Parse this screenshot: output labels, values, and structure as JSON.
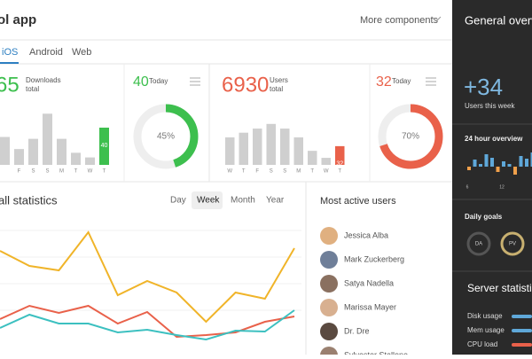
{
  "header": {
    "title": "ol app",
    "menu": "More components"
  },
  "tabs": [
    "iOS",
    "Android",
    "Web"
  ],
  "cards": [
    {
      "total": "65",
      "label_lines": [
        "Downloads",
        "total"
      ],
      "color": "#3dbf4e",
      "days": [
        null,
        "F",
        "S",
        "S",
        "M",
        "T",
        "W",
        "T"
      ],
      "values": [
        30,
        17,
        28,
        55,
        28,
        13,
        8,
        40
      ],
      "today": 40,
      "today_label": "Today",
      "percent": {
        "value": 45,
        "label": "45%"
      }
    },
    {
      "total": "6930",
      "label_lines": [
        "Users",
        "total"
      ],
      "color": "#e9614a",
      "days": [
        "W",
        "T",
        "F",
        "S",
        "S",
        "M",
        "T",
        "W",
        "T"
      ],
      "values": [
        47,
        55,
        62,
        70,
        62,
        47,
        24,
        12,
        32
      ],
      "today": 32,
      "today_label": "Today",
      "percent": {
        "value": 70,
        "label": "70%"
      }
    }
  ],
  "statistics": {
    "title": "all statistics",
    "periods": [
      "Day",
      "Week",
      "Month",
      "Year"
    ],
    "active": 1,
    "series": [
      {
        "color": "#f0b429",
        "values": [
          107,
          90,
          85,
          128,
          57,
          73,
          60,
          27,
          60,
          53,
          110
        ]
      },
      {
        "color": "#e9614a",
        "values": [
          30,
          45,
          37,
          45,
          25,
          38,
          10,
          12,
          15,
          27,
          33
        ]
      },
      {
        "color": "#3cc0c0",
        "values": [
          20,
          35,
          25,
          25,
          15,
          18,
          12,
          7,
          17,
          16,
          40
        ]
      }
    ]
  },
  "users": {
    "title": "Most active users",
    "names": [
      "Jessica Alba",
      "Mark Zuckerberg",
      "Satya Nadella",
      "Marissa Mayer",
      "Dr. Dre",
      "Sylvester Stallone"
    ]
  },
  "overview": {
    "title": "General overvie",
    "count": "+34",
    "count_label": "Users this week",
    "hourly_title": "24 hour overview",
    "hourly_values": [
      -4,
      8,
      3,
      14,
      10,
      -6,
      6,
      3,
      -9,
      12,
      9,
      16
    ],
    "hourly_ticks": [
      6,
      12
    ],
    "goals_title": "Daily goals",
    "goals": [
      "DA",
      "PV"
    ],
    "server_title": "Server statisti",
    "server_items": [
      "Disk usage",
      "Mem usage",
      "CPU load"
    ]
  }
}
